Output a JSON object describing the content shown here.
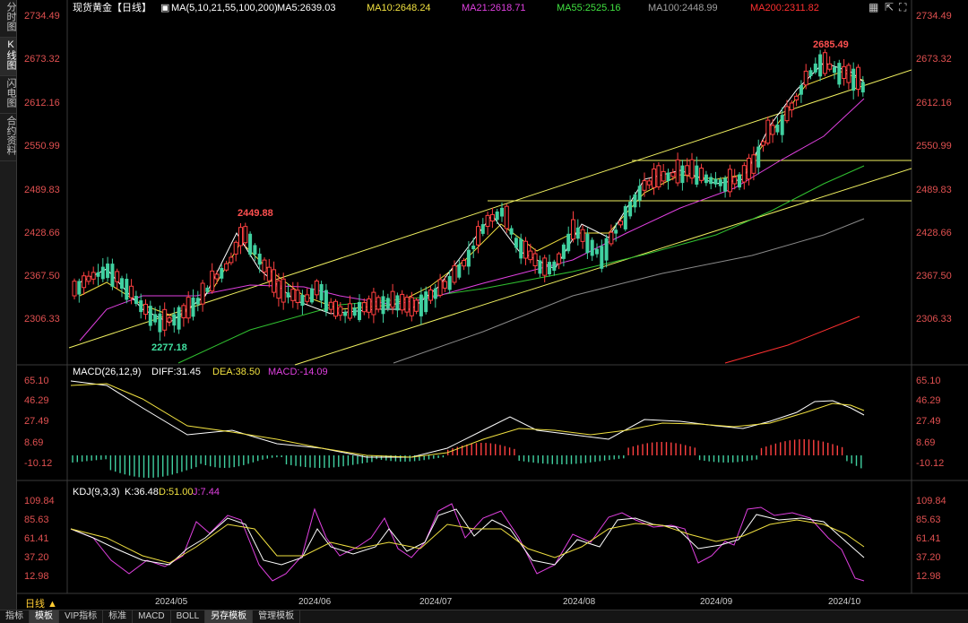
{
  "sidebar": {
    "items": [
      {
        "label": "分时图",
        "active": false
      },
      {
        "label": "K线图",
        "active": true
      },
      {
        "label": "闪电图",
        "active": false
      },
      {
        "label": "合约资料",
        "active": false
      }
    ]
  },
  "main_header": {
    "title": "现货黄金【日线】",
    "ma_params": "MA(5,10,21,55,100,200)",
    "ma5": "MA5:2639.03",
    "ma10": "MA10:2648.24",
    "ma21": "MA21:2618.71",
    "ma55": "MA55:2525.16",
    "ma100": "MA100:2448.99",
    "ma200": "MA200:2311.82",
    "colors": {
      "ma5": "#ffffff",
      "ma10": "#f0e040",
      "ma21": "#e040e0",
      "ma55": "#40e040",
      "ma100": "#a0a0a0",
      "ma200": "#ff3030"
    }
  },
  "price_axis": [
    "2734.49",
    "2673.32",
    "2612.16",
    "2550.99",
    "2489.83",
    "2428.66",
    "2367.50",
    "2306.33"
  ],
  "annotations": {
    "high_1": "2449.88",
    "low_1": "2277.18",
    "high_2": "2685.49"
  },
  "macd_header": {
    "params": "MACD(26,12,9)",
    "diff": "DIFF:31.45",
    "dea": "DEA:38.50",
    "macd": "MACD:-14.09"
  },
  "macd_axis": [
    "65.10",
    "46.29",
    "27.49",
    "8.69",
    "-10.12"
  ],
  "kdj_header": {
    "params": "KDJ(9,3,3)",
    "k": "K:36.48",
    "d": "D:51.00",
    "j": "J:7.44"
  },
  "kdj_axis": [
    "109.84",
    "85.63",
    "61.41",
    "37.20",
    "12.98"
  ],
  "date_axis": [
    "2024/05",
    "2024/06",
    "2024/07",
    "2024/08",
    "2024/09",
    "2024/10"
  ],
  "period_label": "日线 ▲",
  "bottom_tabs": [
    {
      "label": "指标",
      "active": false
    },
    {
      "label": "模板",
      "active": true
    },
    {
      "label": "VIP指标",
      "active": false
    },
    {
      "label": "标准",
      "active": false
    },
    {
      "label": "MACD",
      "active": false
    },
    {
      "label": "BOLL",
      "active": false
    },
    {
      "label": "另存模板",
      "active": true
    },
    {
      "label": "管理模板",
      "active": false
    }
  ]
}
